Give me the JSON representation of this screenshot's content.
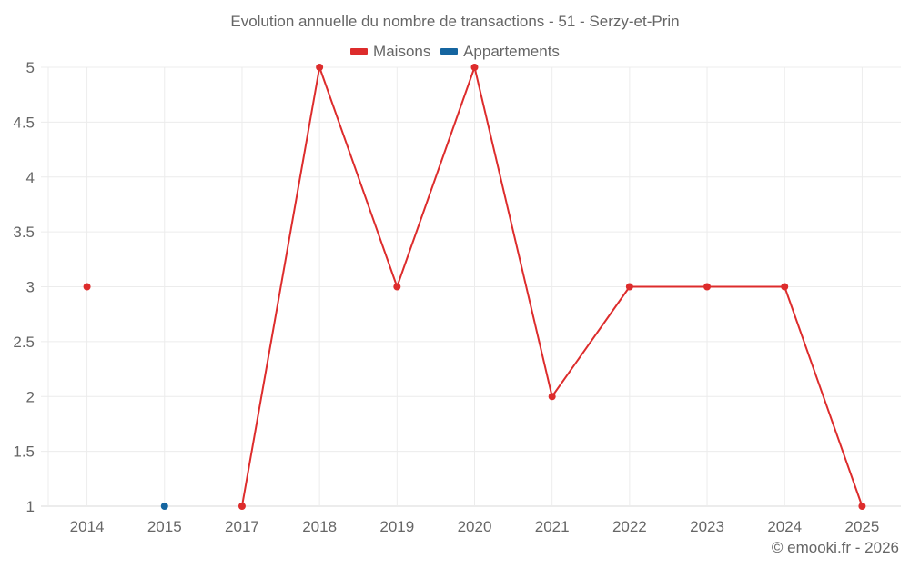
{
  "header": {
    "title": "Evolution annuelle du nombre de transactions - 51 - Serzy-et-Prin"
  },
  "legend": {
    "items": [
      {
        "label": "Maisons",
        "color": "#dd2c2c"
      },
      {
        "label": "Appartements",
        "color": "#1565a0"
      }
    ]
  },
  "footer": {
    "credit": "© emooki.fr - 2026"
  },
  "chart_data": {
    "type": "line",
    "title": "Evolution annuelle du nombre de transactions - 51 - Serzy-et-Prin",
    "xlabel": "",
    "ylabel": "",
    "categories": [
      "2014",
      "2015",
      "2017",
      "2018",
      "2019",
      "2020",
      "2021",
      "2022",
      "2023",
      "2024",
      "2025"
    ],
    "series": [
      {
        "name": "Maisons",
        "color": "#dd2c2c",
        "values": [
          3,
          null,
          1,
          5,
          3,
          5,
          2,
          3,
          3,
          3,
          1
        ]
      },
      {
        "name": "Appartements",
        "color": "#1565a0",
        "values": [
          null,
          1,
          null,
          null,
          null,
          null,
          null,
          null,
          null,
          null,
          null
        ]
      }
    ],
    "yticks": [
      "1",
      "1.5",
      "2",
      "2.5",
      "3",
      "3.5",
      "4",
      "4.5",
      "5"
    ],
    "ylim": [
      1,
      5
    ],
    "grid": true,
    "legend_position": "top"
  }
}
